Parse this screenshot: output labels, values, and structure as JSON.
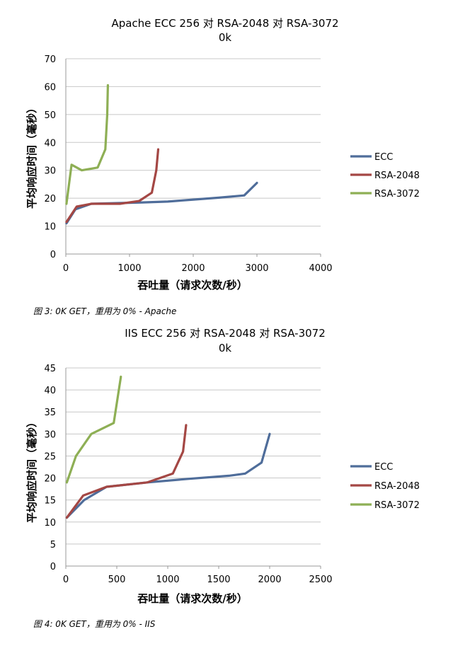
{
  "charts": [
    {
      "title_line1": "Apache ECC 256 对 RSA-2048 对 RSA-3072",
      "title_line2": "0k",
      "xlabel": "吞吐量（请求次数/秒）",
      "ylabel": "平均响应时间（毫秒）",
      "caption": "图 3: 0K GET，重用为 0% - Apache"
    },
    {
      "title_line1": "IIS ECC 256 对 RSA-2048 对 RSA-3072",
      "title_line2": "0k",
      "xlabel": "吞吐量（请求次数/秒）",
      "ylabel": "平均响应时间（毫秒）",
      "caption": "图 4: 0K GET，重用为 0% - IIS"
    }
  ],
  "chart_data": [
    {
      "type": "line",
      "title": "Apache ECC 256 对 RSA-2048 对 RSA-3072 0k",
      "xlabel": "吞吐量（请求次数/秒）",
      "ylabel": "平均响应时间（毫秒）",
      "xlim": [
        0,
        4000
      ],
      "ylim": [
        0,
        70
      ],
      "xticks": [
        "0",
        "1000",
        "2000",
        "3000",
        "4000"
      ],
      "yticks": [
        "0",
        "10",
        "20",
        "30",
        "40",
        "50",
        "60",
        "70"
      ],
      "grid": "horizontal",
      "legend": "right",
      "series": [
        {
          "name": "ECC",
          "color": "#4F6D9A",
          "points": [
            [
              10,
              11
            ],
            [
              150,
              16
            ],
            [
              400,
              18
            ],
            [
              1200,
              18.5
            ],
            [
              1600,
              18.8
            ],
            [
              2000,
              19.5
            ],
            [
              2400,
              20.2
            ],
            [
              2800,
              21
            ],
            [
              3000,
              25.5
            ]
          ]
        },
        {
          "name": "RSA-2048",
          "color": "#A44744",
          "points": [
            [
              10,
              11.5
            ],
            [
              170,
              17
            ],
            [
              400,
              18
            ],
            [
              850,
              18
            ],
            [
              1150,
              19
            ],
            [
              1350,
              22
            ],
            [
              1420,
              30
            ],
            [
              1450,
              37.5
            ]
          ]
        },
        {
          "name": "RSA-3072",
          "color": "#8EAF55",
          "points": [
            [
              10,
              18
            ],
            [
              90,
              32
            ],
            [
              250,
              30
            ],
            [
              500,
              31
            ],
            [
              620,
              37.5
            ],
            [
              650,
              50
            ],
            [
              660,
              60.5
            ]
          ]
        }
      ]
    },
    {
      "type": "line",
      "title": "IIS ECC 256 对 RSA-2048 对 RSA-3072 0k",
      "xlabel": "吞吐量（请求次数/秒）",
      "ylabel": "平均响应时间（毫秒）",
      "xlim": [
        0,
        2500
      ],
      "ylim": [
        0,
        45
      ],
      "xticks": [
        "0",
        "500",
        "1000",
        "1500",
        "2000",
        "2500"
      ],
      "yticks": [
        "0",
        "5",
        "10",
        "15",
        "20",
        "25",
        "30",
        "35",
        "40",
        "45"
      ],
      "grid": "horizontal",
      "legend": "right",
      "series": [
        {
          "name": "ECC",
          "color": "#4F6D9A",
          "points": [
            [
              10,
              11
            ],
            [
              180,
              15
            ],
            [
              400,
              18
            ],
            [
              800,
              19
            ],
            [
              1200,
              19.8
            ],
            [
              1600,
              20.5
            ],
            [
              1760,
              21
            ],
            [
              1920,
              23.5
            ],
            [
              2000,
              30
            ]
          ]
        },
        {
          "name": "RSA-2048",
          "color": "#A44744",
          "points": [
            [
              10,
              11
            ],
            [
              170,
              16
            ],
            [
              400,
              18
            ],
            [
              800,
              19
            ],
            [
              1050,
              21
            ],
            [
              1150,
              26
            ],
            [
              1180,
              32
            ]
          ]
        },
        {
          "name": "RSA-3072",
          "color": "#8EAF55",
          "points": [
            [
              10,
              19
            ],
            [
              100,
              25
            ],
            [
              250,
              30
            ],
            [
              470,
              32.5
            ],
            [
              540,
              43
            ]
          ]
        }
      ]
    }
  ]
}
